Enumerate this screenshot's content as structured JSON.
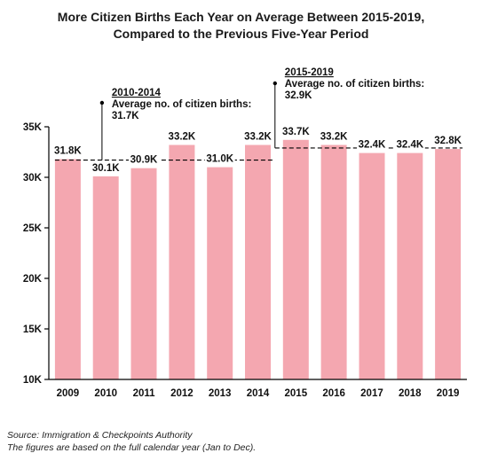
{
  "title_line1": "More Citizen Births Each Year on Average Between 2015-2019,",
  "title_line2": "Compared to the Previous Five-Year Period",
  "chart_data": {
    "type": "bar",
    "categories": [
      "2009",
      "2010",
      "2011",
      "2012",
      "2013",
      "2014",
      "2015",
      "2016",
      "2017",
      "2018",
      "2019"
    ],
    "values": [
      31.8,
      30.1,
      30.9,
      33.2,
      31.0,
      33.2,
      33.7,
      33.2,
      32.4,
      32.4,
      32.8
    ],
    "data_labels": [
      "31.8K",
      "30.1K",
      "30.9K",
      "33.2K",
      "31.0K",
      "33.2K",
      "33.7K",
      "33.2K",
      "32.4K",
      "32.4K",
      "32.8K"
    ],
    "ylim": [
      10,
      35
    ],
    "yticks": [
      10,
      15,
      20,
      25,
      30,
      35
    ],
    "ytick_labels": [
      "10K",
      "15K",
      "20K",
      "25K",
      "30K",
      "35K"
    ],
    "xlabel": "",
    "ylabel": "",
    "grid": false,
    "bar_color": "#f4a7b0",
    "annotations": [
      {
        "period": "2010-2014",
        "text_line1": "Average no. of citizen births:",
        "text_line2": "31.7K",
        "value": 31.7,
        "from_category": "2009",
        "to_category": "2014"
      },
      {
        "period": "2015-2019",
        "text_line1": "Average no. of citizen births:",
        "text_line2": "32.9K",
        "value": 32.9,
        "from_category": "2015",
        "to_category": "2019"
      }
    ]
  },
  "source": "Source: Immigration & Checkpoints Authority",
  "note": "The figures are based on the full calendar year (Jan to Dec)."
}
